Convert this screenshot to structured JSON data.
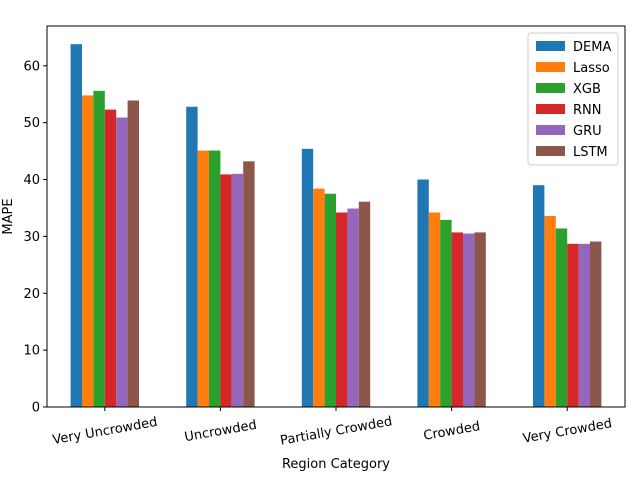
{
  "chart_data": {
    "type": "bar",
    "title": "",
    "xlabel": "Region Category",
    "ylabel": "MAPE",
    "categories": [
      "Very Uncrowded",
      "Uncrowded",
      "Partially Crowded",
      "Crowded",
      "Very Crowded"
    ],
    "series": [
      {
        "name": "DEMA",
        "color": "#1f77b4",
        "values": [
          63.8,
          52.8,
          45.4,
          40.0,
          39.0
        ]
      },
      {
        "name": "Lasso",
        "color": "#ff7f0e",
        "values": [
          54.8,
          45.1,
          38.4,
          34.2,
          33.6
        ]
      },
      {
        "name": "XGB",
        "color": "#2ca02c",
        "values": [
          55.6,
          45.1,
          37.5,
          32.9,
          31.4
        ]
      },
      {
        "name": "RNN",
        "color": "#d62728",
        "values": [
          52.3,
          40.9,
          34.2,
          30.7,
          28.7
        ]
      },
      {
        "name": "GRU",
        "color": "#9467bd",
        "values": [
          50.9,
          41.0,
          34.9,
          30.5,
          28.7
        ]
      },
      {
        "name": "LSTM",
        "color": "#8c564b",
        "values": [
          53.9,
          43.2,
          36.1,
          30.7,
          29.1
        ]
      }
    ],
    "ylim": [
      0,
      67.0
    ],
    "yticks": [
      0,
      10,
      20,
      30,
      40,
      50,
      60
    ],
    "xtick_rotation_deg": 10,
    "grid": false,
    "legend_position": "top-right"
  }
}
